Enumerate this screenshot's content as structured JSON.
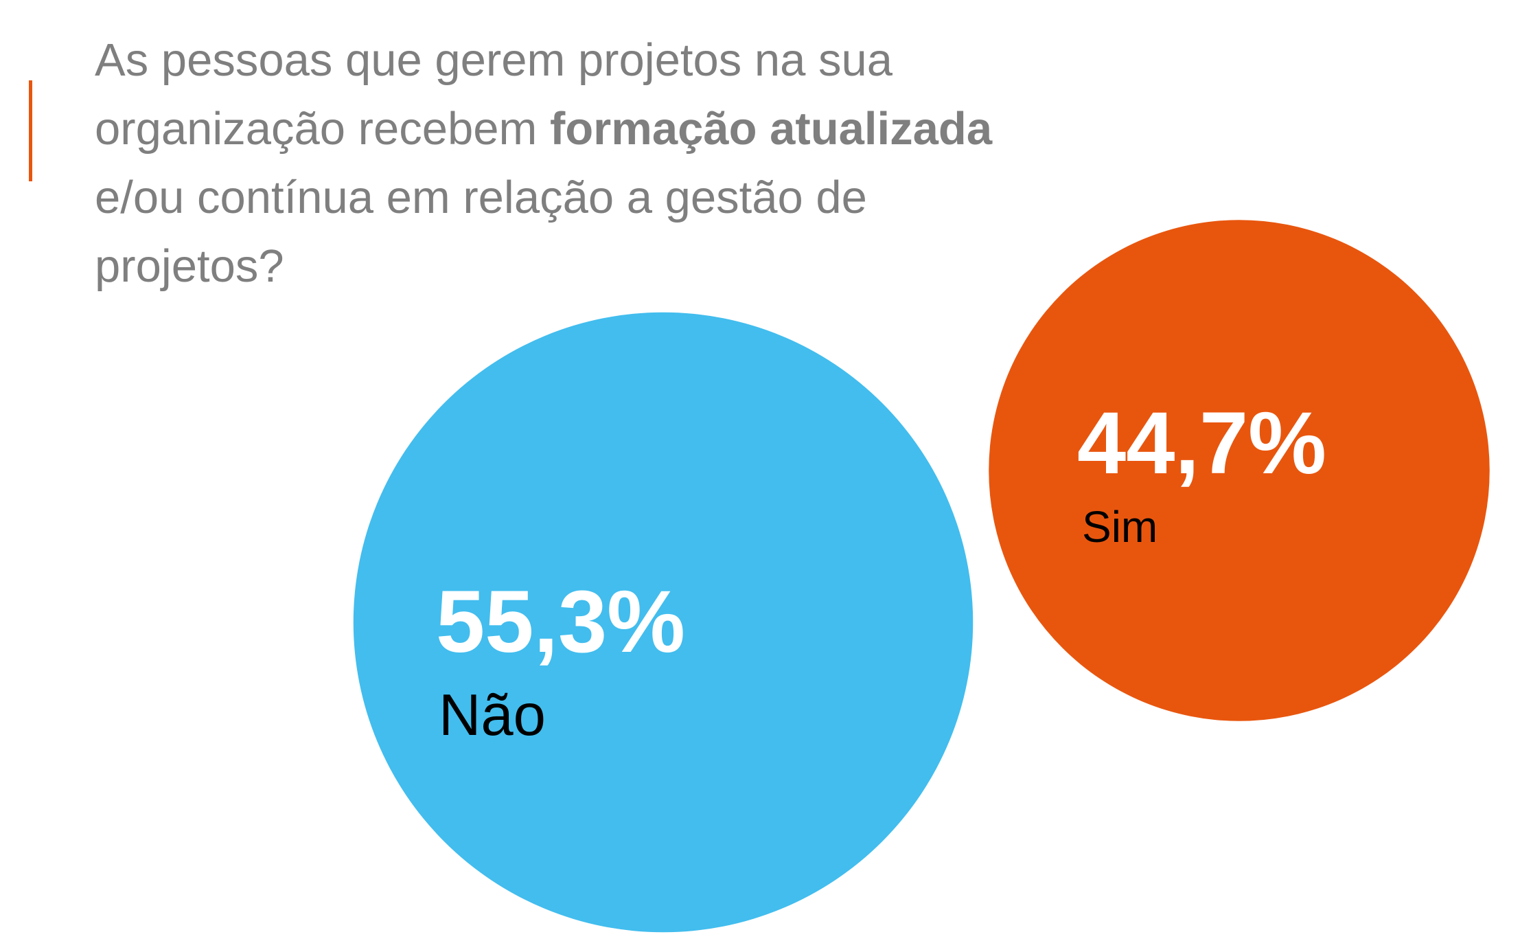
{
  "chart_data": {
    "type": "bubble",
    "title_parts": [
      {
        "text": "As pessoas que gerem projetos na sua organização recebem ",
        "bold": false
      },
      {
        "text": "formação atualizada",
        "bold": true
      },
      {
        "text": " e/ou contínua em relação a gestão de projetos?",
        "bold": false
      }
    ],
    "categories": [
      "Não",
      "Sim"
    ],
    "values": [
      55.3,
      44.7
    ],
    "value_labels": [
      "55,3%",
      "44,7%"
    ],
    "colors": [
      "#42bdee",
      "#e8560e"
    ]
  }
}
